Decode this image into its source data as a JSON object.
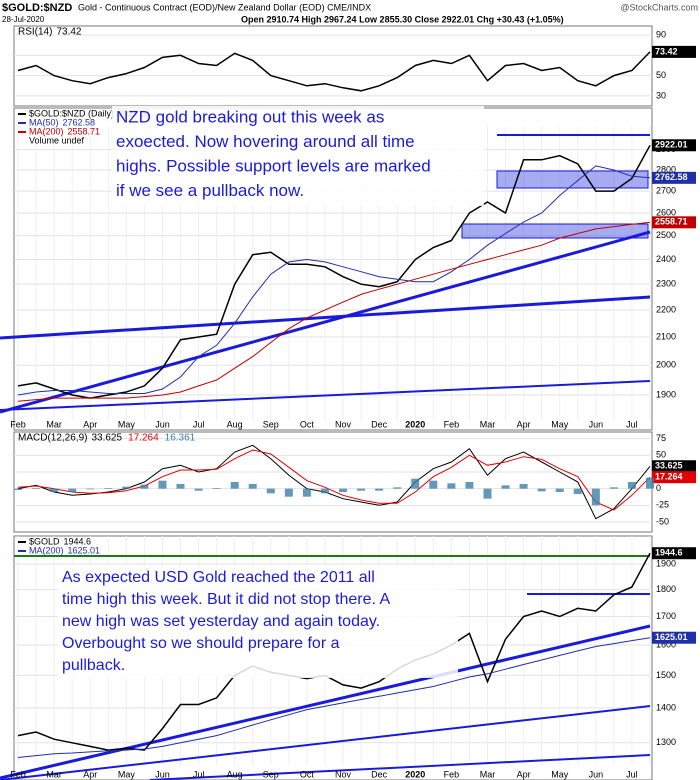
{
  "header": {
    "symbol": "$GOLD:$NZD",
    "description": "Gold - Continuous Contract (EOD)/New Zealand Dollar (EOD) CME/INDX",
    "date": "28-Jul-2020",
    "quote": "Open 2910.74 High 2967.24 Low 2855.30 Close 2922.01 Chg +30.43 (+1.05%)",
    "watermark": "@StockCharts.com"
  },
  "chart_data": [
    {
      "type": "line",
      "title": "RSI(14)",
      "ylim": [
        22,
        95
      ],
      "yticks": [
        30,
        50,
        70,
        90
      ],
      "grid": true,
      "series": [
        {
          "color": "#000000",
          "values": [
            55,
            60,
            50,
            45,
            42,
            48,
            52,
            58,
            68,
            70,
            62,
            60,
            72,
            65,
            50,
            45,
            40,
            42,
            38,
            35,
            40,
            48,
            60,
            65,
            62,
            70,
            45,
            60,
            62,
            55,
            58,
            45,
            40,
            50,
            55,
            73.42
          ]
        }
      ]
    },
    {
      "type": "line",
      "title": "$GOLD:$NZD (Daily)",
      "log_scale": true,
      "ylim": [
        1820,
        3000
      ],
      "yticks": [
        1900,
        2000,
        2100,
        2200,
        2300,
        2400,
        2500,
        2600,
        2700,
        2800,
        2900
      ],
      "grid": true,
      "volume_note": "Volume undef",
      "annotation": [
        "NZD gold breaking out this week as",
        "exoected. Now hovering around all time",
        "highs. Possible support levels are marked",
        "if we see a pullback now."
      ],
      "categories": [
        "Feb",
        null,
        "Mar",
        null,
        "Apr",
        null,
        "May",
        null,
        "Jun",
        null,
        "Jul",
        null,
        "Aug",
        null,
        "Sep",
        null,
        "Oct",
        null,
        "Nov",
        null,
        "Dec",
        null,
        "2020",
        null,
        "Feb",
        null,
        "Mar",
        null,
        "Apr",
        null,
        "May",
        null,
        "Jun",
        null,
        "Jul",
        null
      ],
      "series": [
        {
          "name": "$GOLD:$NZD (Daily)",
          "color": "#000000",
          "values": [
            1930,
            1940,
            1920,
            1900,
            1890,
            1900,
            1910,
            1930,
            1990,
            2090,
            2100,
            2110,
            2300,
            2420,
            2430,
            2380,
            2380,
            2370,
            2330,
            2300,
            2290,
            2310,
            2400,
            2450,
            2480,
            2600,
            2650,
            2600,
            2850,
            2850,
            2870,
            2830,
            2700,
            2700,
            2760,
            2922.01
          ]
        },
        {
          "name": "MA(50)",
          "color": "#1f2fa8",
          "values": [
            1900,
            1910,
            1915,
            1915,
            1910,
            1905,
            1905,
            1905,
            1920,
            1960,
            2030,
            2070,
            2150,
            2250,
            2340,
            2390,
            2400,
            2390,
            2370,
            2350,
            2330,
            2320,
            2310,
            2310,
            2350,
            2400,
            2460,
            2510,
            2560,
            2600,
            2680,
            2750,
            2820,
            2800,
            2770,
            2762.58
          ]
        },
        {
          "name": "MA(200)",
          "color": "#c00000",
          "values": [
            1880,
            1885,
            1890,
            1890,
            1890,
            1890,
            1890,
            1895,
            1900,
            1910,
            1930,
            1950,
            1990,
            2030,
            2080,
            2130,
            2170,
            2200,
            2230,
            2260,
            2280,
            2300,
            2320,
            2340,
            2360,
            2380,
            2400,
            2420,
            2440,
            2460,
            2490,
            2510,
            2530,
            2540,
            2550,
            2558.71
          ]
        }
      ]
    },
    {
      "type": "macd",
      "title": "MACD(12,26,9)",
      "ylim": [
        -62,
        82
      ],
      "yticks": [
        -50,
        -25,
        0,
        25,
        50,
        75
      ],
      "grid": true,
      "series": [
        {
          "color": "#000000",
          "values": [
            0,
            5,
            -5,
            -10,
            -8,
            -5,
            0,
            10,
            30,
            35,
            25,
            30,
            55,
            65,
            45,
            20,
            0,
            -5,
            -15,
            -20,
            -25,
            -20,
            10,
            30,
            40,
            60,
            20,
            45,
            55,
            40,
            25,
            10,
            -45,
            -30,
            0,
            33.625
          ]
        },
        {
          "color": "#e00000",
          "values": [
            2,
            4,
            0,
            -5,
            -7,
            -6,
            -3,
            4,
            18,
            28,
            28,
            29,
            45,
            58,
            52,
            32,
            12,
            2,
            -10,
            -17,
            -22,
            -22,
            -5,
            18,
            32,
            50,
            35,
            40,
            48,
            44,
            30,
            18,
            -20,
            -32,
            -10,
            17.264
          ]
        },
        {
          "color": "#3d7ea6",
          "style": "histogram",
          "values": [
            -2,
            1,
            -5,
            -5,
            -1,
            1,
            3,
            6,
            12,
            7,
            -3,
            1,
            10,
            7,
            -7,
            -12,
            -12,
            -7,
            -5,
            -3,
            -3,
            2,
            15,
            12,
            8,
            10,
            -15,
            5,
            7,
            -4,
            -5,
            -8,
            -25,
            2,
            10,
            16.361
          ]
        }
      ]
    },
    {
      "type": "line",
      "title": "$GOLD",
      "log_scale": true,
      "ylim": [
        1240,
        2000
      ],
      "yticks": [
        1300,
        1400,
        1500,
        1600,
        1700,
        1800,
        1900
      ],
      "grid": true,
      "annotation": [
        "As expected USD Gold reached the 2011 all",
        "time high this week. But it did not stop there. A",
        "new high was set yesterday and again today.",
        "Overbought so we should prepare for a",
        "pullback."
      ],
      "categories": [
        "Feb",
        null,
        "Mar",
        null,
        "Apr",
        null,
        "May",
        null,
        "Jun",
        null,
        "Jul",
        null,
        "Aug",
        null,
        "Sep",
        null,
        "Oct",
        null,
        "Nov",
        null,
        "Dec",
        null,
        "2020",
        null,
        "Feb",
        null,
        "Mar",
        null,
        "Apr",
        null,
        "May",
        null,
        "Jun",
        null,
        "Jul",
        null
      ],
      "series": [
        {
          "name": "$GOLD",
          "color": "#000000",
          "values": [
            1320,
            1330,
            1310,
            1300,
            1290,
            1280,
            1285,
            1280,
            1340,
            1410,
            1410,
            1430,
            1500,
            1530,
            1510,
            1500,
            1490,
            1500,
            1470,
            1460,
            1480,
            1520,
            1550,
            1570,
            1600,
            1640,
            1480,
            1620,
            1700,
            1720,
            1700,
            1730,
            1720,
            1780,
            1810,
            1944.6
          ]
        },
        {
          "name": "MA(200)",
          "color": "#1f2fa8",
          "values": [
            1260,
            1265,
            1270,
            1272,
            1275,
            1278,
            1280,
            1283,
            1290,
            1300,
            1310,
            1320,
            1335,
            1350,
            1365,
            1380,
            1395,
            1405,
            1415,
            1425,
            1435,
            1445,
            1455,
            1465,
            1480,
            1495,
            1505,
            1520,
            1535,
            1550,
            1565,
            1580,
            1595,
            1605,
            1615,
            1625.01
          ]
        }
      ]
    }
  ]
}
